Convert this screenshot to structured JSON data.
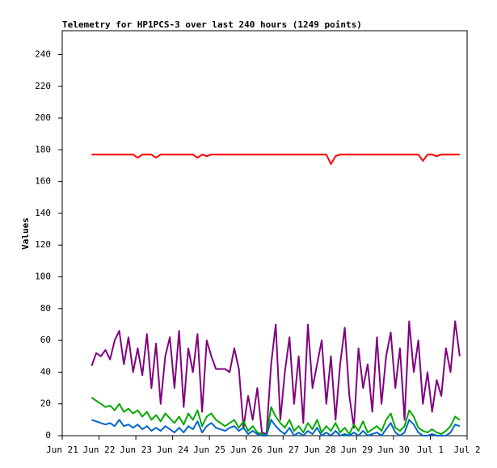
{
  "chart_data": {
    "type": "line",
    "title": "Telemetry for HP1PCS-3 over last 240 hours (1249 points)",
    "ylabel": "Values",
    "x": [
      0.8,
      0.925,
      1.05,
      1.175,
      1.3,
      1.425,
      1.55,
      1.675,
      1.8,
      1.925,
      2.05,
      2.175,
      2.3,
      2.425,
      2.55,
      2.675,
      2.8,
      2.925,
      3.05,
      3.175,
      3.3,
      3.425,
      3.55,
      3.675,
      3.8,
      3.925,
      4.05,
      4.175,
      4.3,
      4.425,
      4.55,
      4.675,
      4.8,
      4.925,
      5.05,
      5.175,
      5.3,
      5.425,
      5.55,
      5.675,
      5.8,
      5.925,
      6.05,
      6.175,
      6.3,
      6.425,
      6.55,
      6.675,
      6.8,
      6.925,
      7.05,
      7.175,
      7.3,
      7.425,
      7.55,
      7.675,
      7.8,
      7.925,
      8.05,
      8.175,
      8.3,
      8.425,
      8.55,
      8.675,
      8.8,
      8.925,
      9.05,
      9.175,
      9.3,
      9.425,
      9.55,
      9.675,
      9.8,
      9.925,
      10.05,
      10.175,
      10.3,
      10.425,
      10.55,
      10.675,
      10.8
    ],
    "series": [
      {
        "color": "#ff0000",
        "values": [
          177,
          177,
          177,
          177,
          177,
          177,
          177,
          177,
          177,
          177,
          175,
          177,
          177,
          177,
          175,
          177,
          177,
          177,
          177,
          177,
          177,
          177,
          177,
          175,
          177,
          176,
          177,
          177,
          177,
          177,
          177,
          177,
          177,
          177,
          177,
          177,
          177,
          177,
          177,
          177,
          177,
          177,
          177,
          177,
          177,
          177,
          177,
          177,
          177,
          177,
          177,
          177,
          171,
          176,
          177,
          177,
          177,
          177,
          177,
          177,
          177,
          177,
          177,
          177,
          177,
          177,
          177,
          177,
          177,
          177,
          177,
          177,
          173,
          177,
          177,
          176,
          177,
          177,
          177,
          177,
          177
        ]
      },
      {
        "color": "#800080",
        "values": [
          44,
          52,
          50,
          54,
          48,
          60,
          66,
          45,
          62,
          40,
          55,
          38,
          64,
          30,
          58,
          20,
          50,
          62,
          30,
          66,
          18,
          55,
          40,
          64,
          15,
          60,
          50,
          42,
          42,
          42,
          40,
          55,
          42,
          5,
          25,
          10,
          30,
          2,
          1,
          45,
          70,
          10,
          40,
          62,
          20,
          50,
          8,
          70,
          30,
          45,
          60,
          20,
          50,
          10,
          45,
          68,
          25,
          5,
          55,
          30,
          45,
          15,
          62,
          20,
          50,
          65,
          30,
          55,
          10,
          72,
          40,
          60,
          20,
          40,
          15,
          35,
          25,
          55,
          40,
          72,
          50
        ]
      },
      {
        "color": "#00aa00",
        "values": [
          24,
          22,
          20,
          18,
          19,
          16,
          20,
          15,
          17,
          14,
          16,
          12,
          15,
          10,
          13,
          9,
          14,
          11,
          8,
          12,
          7,
          14,
          10,
          16,
          6,
          12,
          14,
          10,
          8,
          6,
          8,
          10,
          5,
          9,
          3,
          6,
          2,
          1,
          0,
          18,
          12,
          8,
          5,
          10,
          3,
          6,
          2,
          8,
          4,
          10,
          2,
          6,
          3,
          8,
          2,
          5,
          1,
          7,
          3,
          9,
          2,
          4,
          6,
          3,
          10,
          14,
          5,
          3,
          6,
          16,
          12,
          5,
          3,
          2,
          4,
          2,
          1,
          3,
          6,
          12,
          10
        ]
      },
      {
        "color": "#0066cc",
        "values": [
          10,
          9,
          8,
          7,
          8,
          6,
          10,
          6,
          7,
          5,
          7,
          4,
          6,
          3,
          5,
          3,
          6,
          4,
          2,
          5,
          2,
          6,
          4,
          9,
          2,
          6,
          8,
          5,
          4,
          3,
          5,
          6,
          3,
          5,
          1,
          3,
          1,
          0,
          0,
          10,
          6,
          3,
          1,
          5,
          0,
          2,
          0,
          3,
          1,
          5,
          0,
          2,
          0,
          3,
          0,
          1,
          0,
          2,
          0,
          3,
          0,
          1,
          2,
          0,
          4,
          8,
          2,
          0,
          2,
          10,
          7,
          2,
          0,
          0,
          1,
          0,
          0,
          0,
          2,
          7,
          6
        ]
      }
    ],
    "xlim": [
      0,
      11
    ],
    "xticks": [
      {
        "value": 0,
        "label": "Jun 21"
      },
      {
        "value": 1,
        "label": "Jun 22"
      },
      {
        "value": 2,
        "label": "Jun 23"
      },
      {
        "value": 3,
        "label": "Jun 24"
      },
      {
        "value": 4,
        "label": "Jun 25"
      },
      {
        "value": 5,
        "label": "Jun 26"
      },
      {
        "value": 6,
        "label": "Jun 27"
      },
      {
        "value": 7,
        "label": "Jun 28"
      },
      {
        "value": 8,
        "label": "Jun 29"
      },
      {
        "value": 9,
        "label": "Jun 30"
      },
      {
        "value": 10,
        "label": "Jul 1"
      },
      {
        "value": 11,
        "label": "Jul 2"
      }
    ],
    "ylim": [
      0,
      255
    ],
    "yticks": [
      0,
      20,
      40,
      60,
      80,
      100,
      120,
      140,
      160,
      180,
      200,
      220,
      240
    ]
  }
}
